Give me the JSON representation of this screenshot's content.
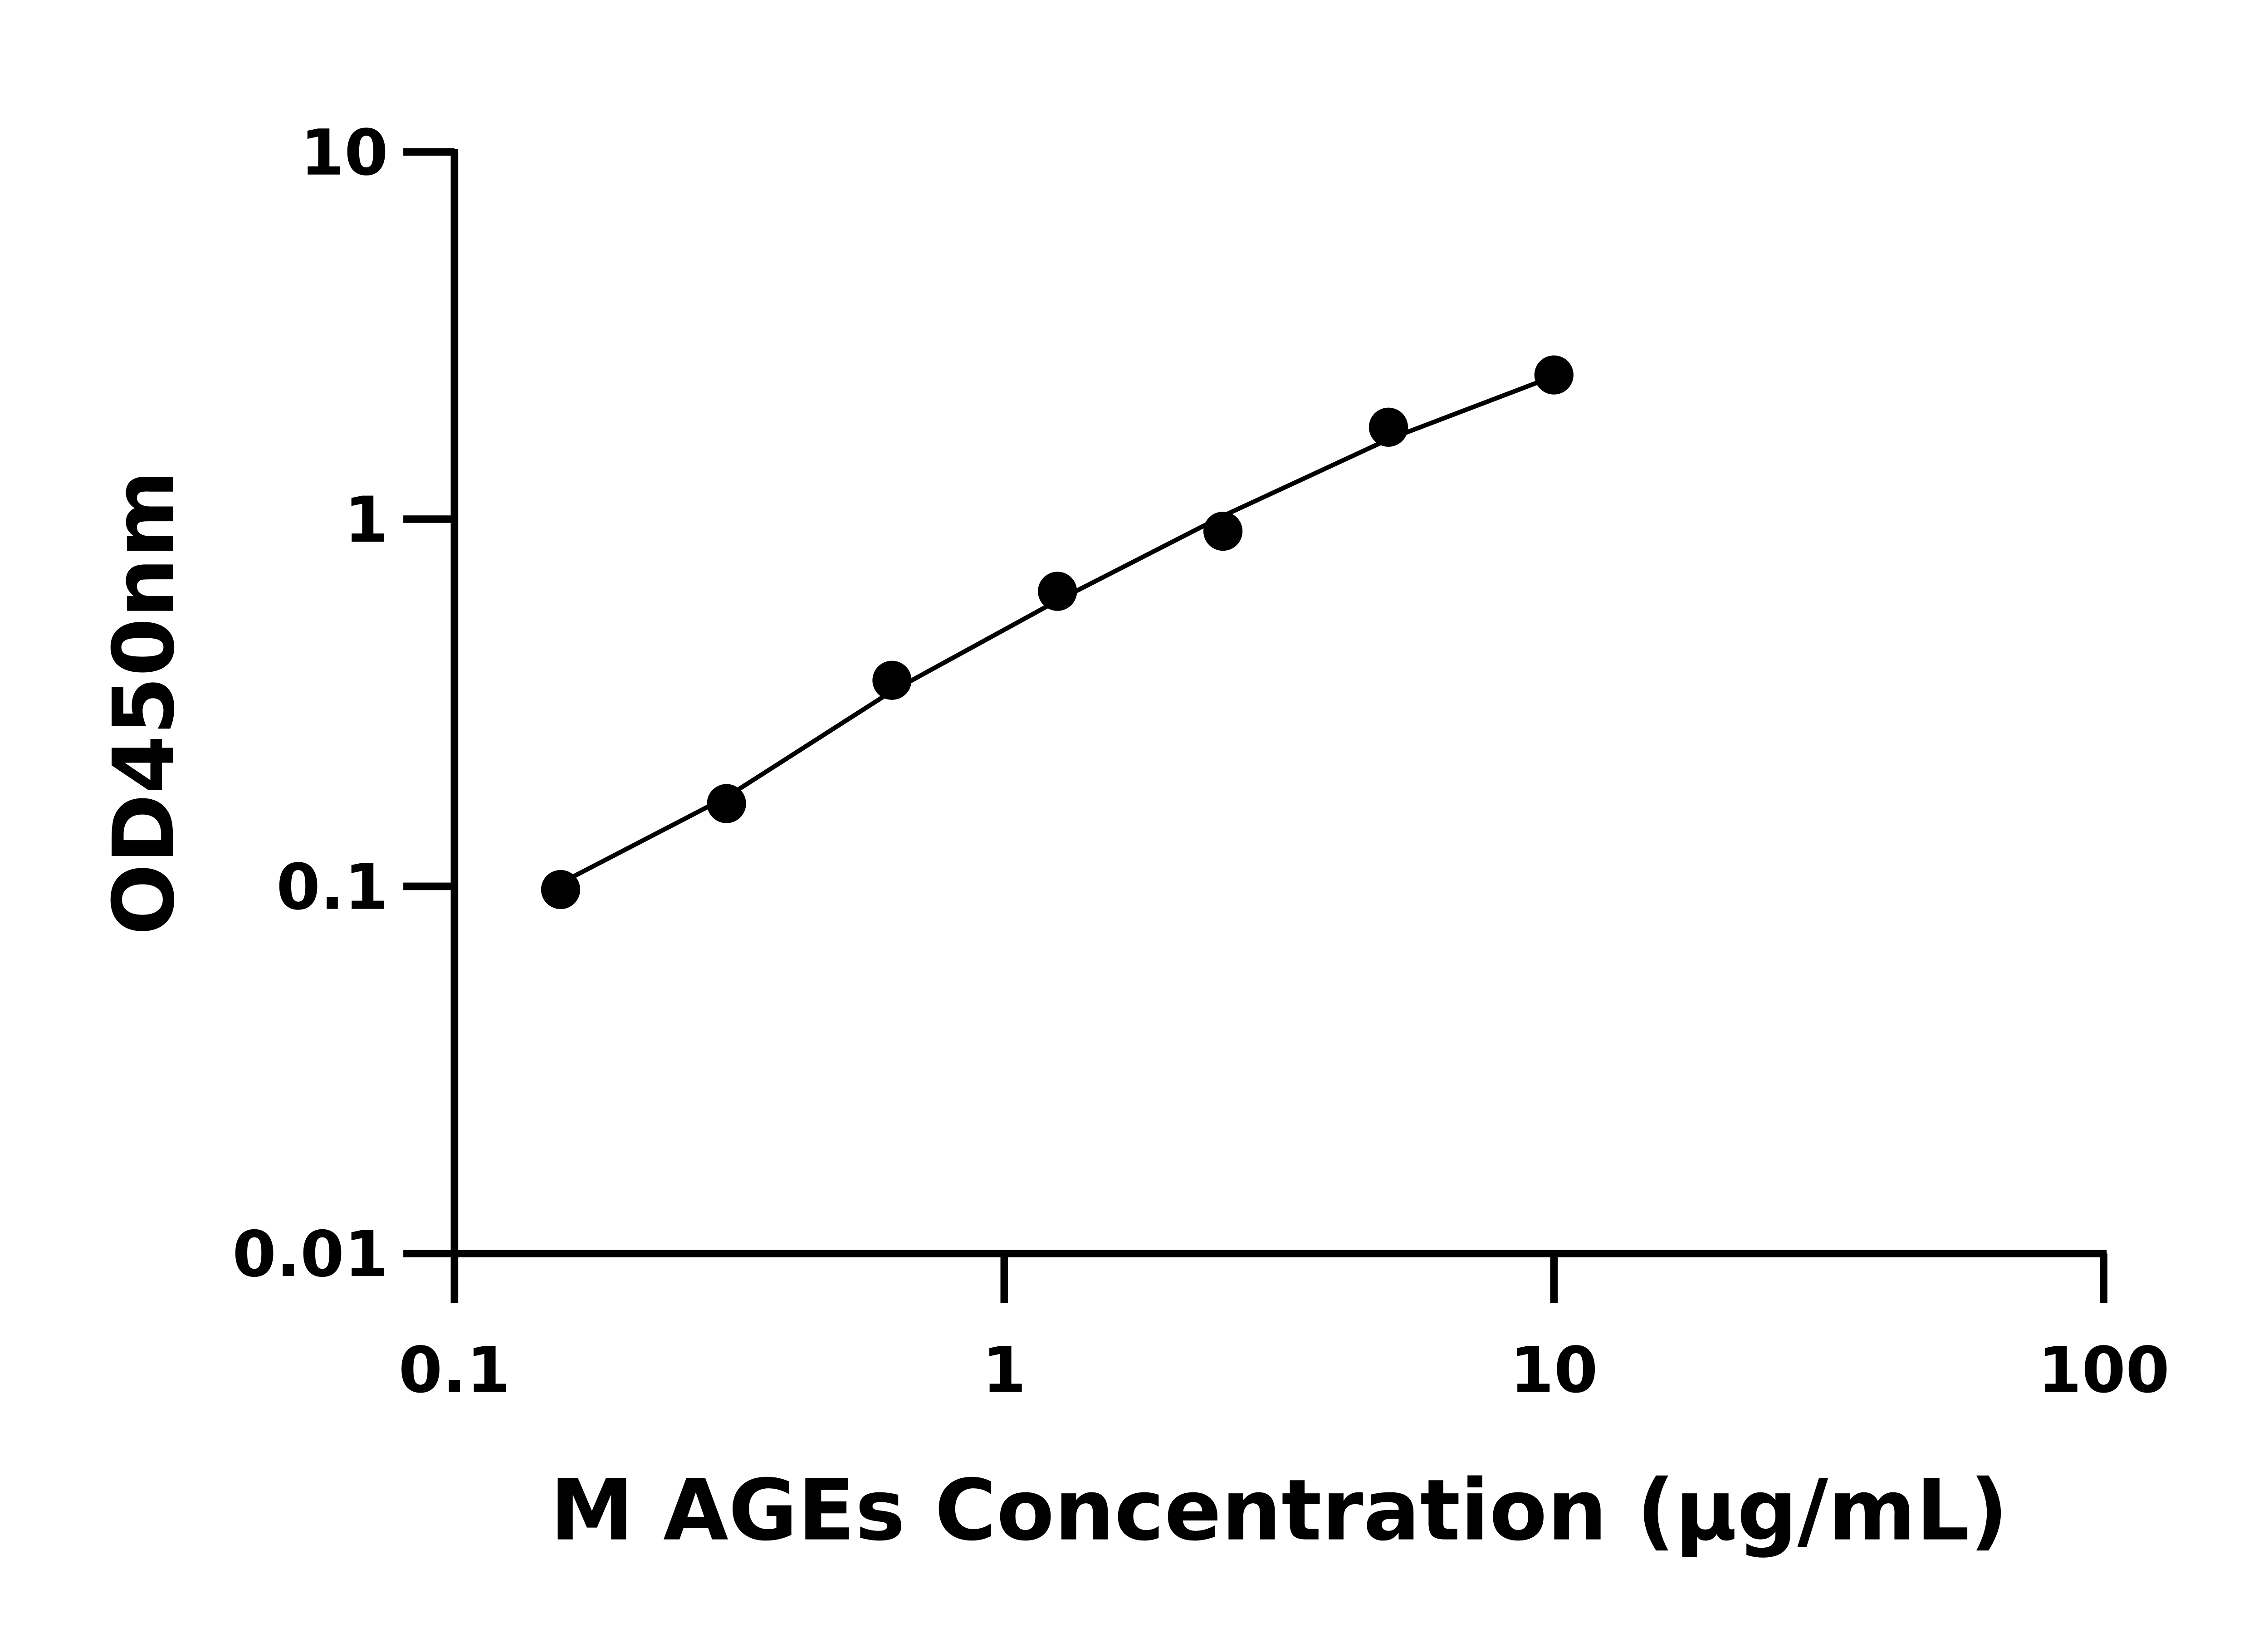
{
  "chart_data": {
    "type": "scatter",
    "xlabel": "M AGEs Concentration (µg/mL)",
    "ylabel": "OD450nm",
    "xscale": "log",
    "yscale": "log",
    "xlim": [
      0.1,
      100
    ],
    "ylim": [
      0.01,
      10
    ],
    "xticks": [
      0.1,
      1,
      10,
      100
    ],
    "yticks": [
      0.01,
      0.1,
      1,
      10
    ],
    "series": [
      {
        "color": "#000000",
        "marker": "circle",
        "x": [
          0.156,
          0.3125,
          0.625,
          1.25,
          2.5,
          5,
          10
        ],
        "values": [
          0.098,
          0.168,
          0.364,
          0.636,
          0.927,
          1.78,
          2.47
        ]
      },
      {
        "color": "#000000",
        "line": true,
        "x": [
          0.156,
          0.3125,
          0.625,
          1.25,
          2.5,
          5,
          10
        ],
        "values": [
          0.102,
          0.175,
          0.34,
          0.6,
          1.02,
          1.65,
          2.45
        ]
      }
    ]
  }
}
